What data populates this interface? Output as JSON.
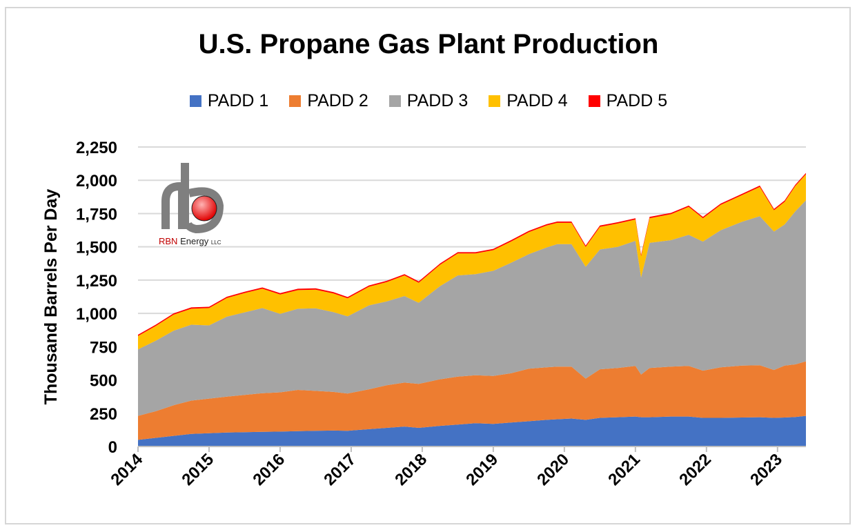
{
  "chart_data": {
    "type": "area",
    "stacked": true,
    "title": "U.S. Propane Gas Plant Production",
    "ylabel": "Thousand Barrels Per Day",
    "xlabel": "",
    "ylim": [
      0,
      2250
    ],
    "yticks": [
      "0",
      "250",
      "500",
      "750",
      "1,000",
      "1,250",
      "1,500",
      "1,750",
      "2,000",
      "2,250"
    ],
    "ytick_values": [
      0,
      250,
      500,
      750,
      1000,
      1250,
      1500,
      1750,
      2000,
      2250
    ],
    "xlim": [
      2014,
      2023.4
    ],
    "xticks": [
      "2014",
      "2015",
      "2016",
      "2017",
      "2018",
      "2019",
      "2020",
      "2021",
      "2022",
      "2023"
    ],
    "xtick_values": [
      2014,
      2015,
      2016,
      2017,
      2018,
      2019,
      2020,
      2021,
      2022,
      2023
    ],
    "grid": true,
    "legend_position": "top",
    "x": [
      2014.0,
      2014.25,
      2014.5,
      2014.75,
      2015.0,
      2015.25,
      2015.5,
      2015.75,
      2016.0,
      2016.25,
      2016.5,
      2016.75,
      2016.95,
      2017.25,
      2017.5,
      2017.75,
      2017.95,
      2018.25,
      2018.5,
      2018.75,
      2019.0,
      2019.25,
      2019.5,
      2019.75,
      2019.9,
      2020.1,
      2020.3,
      2020.5,
      2020.75,
      2021.0,
      2021.08,
      2021.2,
      2021.5,
      2021.75,
      2021.95,
      2022.2,
      2022.5,
      2022.75,
      2022.95,
      2023.1,
      2023.25,
      2023.4
    ],
    "series": [
      {
        "name": "PADD 1",
        "color": "#4472C4",
        "values": [
          50,
          65,
          80,
          95,
          100,
          105,
          108,
          110,
          112,
          115,
          118,
          120,
          118,
          130,
          140,
          150,
          140,
          155,
          165,
          175,
          170,
          180,
          190,
          200,
          205,
          210,
          200,
          215,
          220,
          225,
          220,
          220,
          225,
          225,
          215,
          215,
          218,
          220,
          215,
          218,
          222,
          230
        ]
      },
      {
        "name": "PADD 2",
        "color": "#ED7D31",
        "values": [
          180,
          200,
          230,
          250,
          260,
          270,
          280,
          290,
          295,
          310,
          300,
          290,
          280,
          300,
          320,
          330,
          330,
          350,
          360,
          360,
          360,
          370,
          395,
          395,
          395,
          390,
          310,
          365,
          370,
          380,
          320,
          370,
          375,
          380,
          355,
          380,
          390,
          390,
          360,
          390,
          395,
          410
        ]
      },
      {
        "name": "PADD 3",
        "color": "#A5A5A5",
        "values": [
          500,
          530,
          560,
          570,
          550,
          600,
          620,
          640,
          590,
          610,
          620,
          600,
          580,
          630,
          630,
          650,
          610,
          700,
          760,
          760,
          790,
          830,
          860,
          900,
          920,
          920,
          840,
          900,
          910,
          940,
          730,
          940,
          950,
          985,
          970,
          1030,
          1080,
          1120,
          1040,
          1060,
          1150,
          1210
        ]
      },
      {
        "name": "PADD 4",
        "color": "#FFC000",
        "values": [
          100,
          110,
          120,
          120,
          130,
          140,
          145,
          145,
          145,
          140,
          140,
          140,
          135,
          140,
          145,
          155,
          150,
          160,
          165,
          155,
          155,
          160,
          165,
          165,
          160,
          160,
          150,
          170,
          175,
          160,
          160,
          185,
          195,
          210,
          175,
          190,
          200,
          220,
          160,
          170,
          190,
          195
        ]
      },
      {
        "name": "PADD 5",
        "color": "#FF0000",
        "values": [
          10,
          10,
          10,
          10,
          10,
          10,
          10,
          10,
          10,
          10,
          10,
          10,
          10,
          10,
          10,
          10,
          10,
          10,
          10,
          10,
          10,
          10,
          10,
          10,
          10,
          10,
          10,
          10,
          10,
          10,
          10,
          10,
          10,
          10,
          10,
          10,
          10,
          10,
          10,
          10,
          10,
          10
        ]
      }
    ]
  },
  "logo": {
    "brand": "RBN",
    "word": "Energy",
    "suffix": "LLC",
    "colors": {
      "stem": "#7f7f7f",
      "ball": "#e00000",
      "ball_highlight": "#ffb3b3",
      "outline": "#222222"
    }
  },
  "colors": {
    "gridline": "#d9d9d9",
    "axis": "#bfbfbf",
    "frame": "#d6d6d6"
  }
}
